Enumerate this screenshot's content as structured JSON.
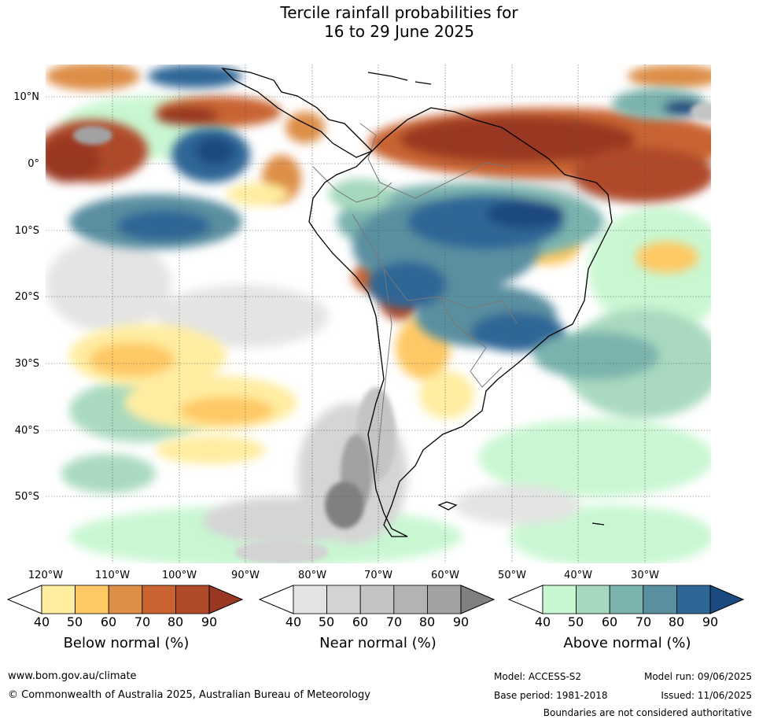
{
  "title": {
    "line1": "Tercile rainfall probabilities for",
    "line2": "16 to 29 June 2025"
  },
  "map": {
    "lat_labels": [
      "10°N",
      "0°",
      "10°S",
      "20°S",
      "30°S",
      "40°S",
      "50°S"
    ],
    "lon_labels": [
      "120°W",
      "110°W",
      "100°W",
      "90°W",
      "80°W",
      "70°W",
      "60°W",
      "50°W",
      "40°W",
      "30°W"
    ],
    "regions": {
      "below_normal": "Below normal",
      "near_normal": "Near normal",
      "above_normal": "Above normal"
    }
  },
  "legend": {
    "ticks": [
      "40",
      "50",
      "60",
      "70",
      "80",
      "90"
    ],
    "below": {
      "title": "Below normal (%)",
      "colors": [
        "#ffeda0",
        "#fec965",
        "#dd8e47",
        "#c96430",
        "#b04a29",
        "#993823"
      ]
    },
    "near": {
      "title": "Near normal (%)",
      "colors": [
        "#e3e3e3",
        "#d3d3d3",
        "#c4c4c4",
        "#b3b3b3",
        "#a2a2a2",
        "#808080"
      ]
    },
    "above": {
      "title": "Above normal (%)",
      "colors": [
        "#c7f7d0",
        "#a5d8bc",
        "#7ab3ae",
        "#5a8fa0",
        "#2e6696",
        "#1a4a80"
      ]
    }
  },
  "footer": {
    "website": "www.bom.gov.au/climate",
    "copyright": "© Commonwealth of Australia 2025, Australian Bureau of Meteorology",
    "model": "Model: ACCESS-S2",
    "model_run": "Model run: 09/06/2025",
    "base_period": "Base period: 1981-2018",
    "issued": "Issued: 11/06/2025",
    "boundaries": "Boundaries are not considered authoritative"
  }
}
